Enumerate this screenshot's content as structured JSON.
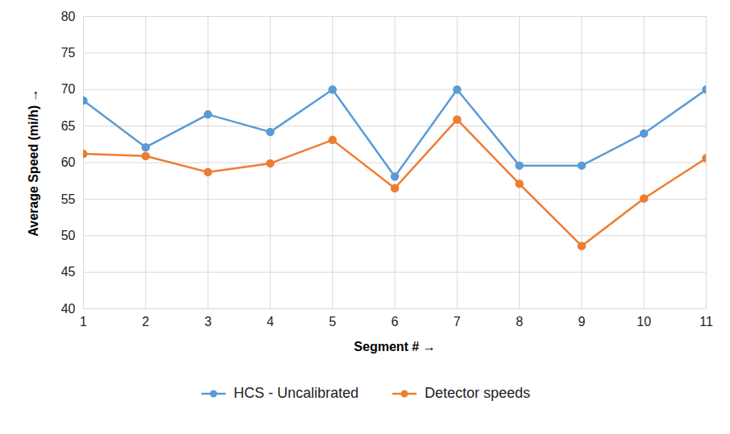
{
  "chart_data": {
    "type": "line",
    "x_label": "Segment #",
    "y_label": "Average Speed (mi/h)",
    "x": [
      1,
      2,
      3,
      4,
      5,
      6,
      7,
      8,
      9,
      10,
      11
    ],
    "series": [
      {
        "name": "HCS - Uncalibrated",
        "color": "#5b9bd5",
        "marker": "circle",
        "line_style": "solid",
        "values": [
          68.5,
          62.1,
          66.6,
          64.2,
          70,
          58.1,
          70,
          59.6,
          59.6,
          64,
          70
        ]
      },
      {
        "name": "Detector speeds",
        "color": "#ed7d31",
        "marker": "circle",
        "line_style": "solid",
        "values": [
          61.2,
          60.9,
          58.7,
          59.9,
          63.1,
          56.5,
          65.9,
          57.1,
          48.6,
          55.1,
          60.6
        ]
      }
    ],
    "xlim": [
      1,
      11
    ],
    "xticks": [
      1,
      2,
      3,
      4,
      5,
      6,
      7,
      8,
      9,
      10,
      11
    ],
    "ylim": [
      40,
      80
    ],
    "yticks": [
      40,
      45,
      50,
      55,
      60,
      65,
      70,
      75,
      80
    ],
    "grid": true,
    "legend": "bottom"
  }
}
